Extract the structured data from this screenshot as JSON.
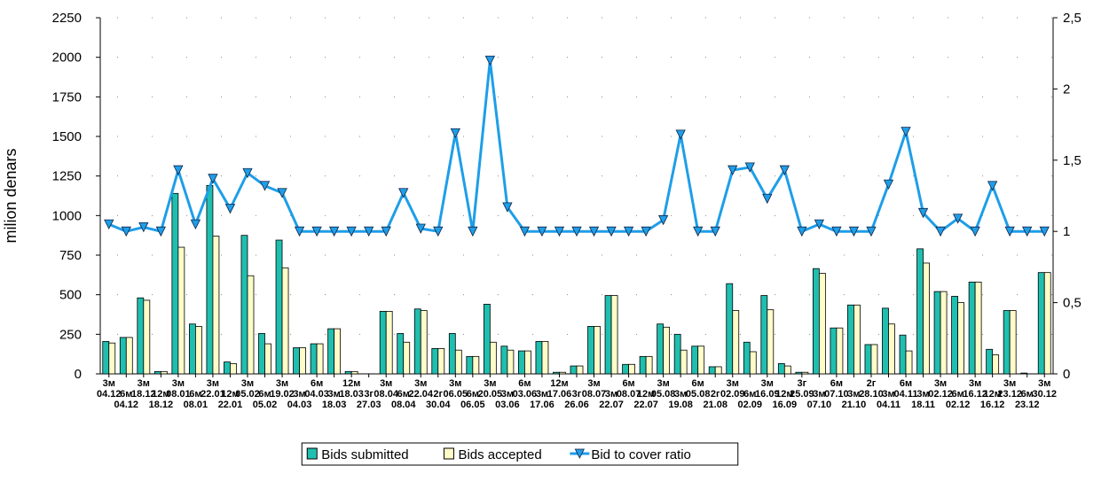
{
  "chart_data": {
    "type": "bar_line",
    "y_label": "milion denars",
    "categories": [
      "3м 04.12",
      "6м 04.12",
      "3м 18.12",
      "12м 18.12",
      "3м 08.01",
      "6м 08.01",
      "3м 22.01",
      "12м 22.01",
      "3м 05.02",
      "6м 05.02",
      "3м 19.02",
      "3м 04.03",
      "6м 04.03",
      "3м 18.03",
      "12м 18.03",
      "3г 27.03",
      "3м 08.04",
      "6м 08.04",
      "3м 22.04",
      "2г 30.04",
      "3м 06.05",
      "6м 06.05",
      "3м 20.05",
      "3м 03.06",
      "6м 03.06",
      "3м 17.06",
      "12м 17.06",
      "3г 26.06",
      "3м 08.07",
      "3м 22.07",
      "6м 08.07",
      "12м 22.07",
      "3м 05.08",
      "3м 19.08",
      "6м 05.08",
      "2г 21.08",
      "3м 02.09",
      "6м 02.09",
      "3м 16.09",
      "12м 16.09",
      "3г 25.09",
      "3м 07.10",
      "6м 07.10",
      "3м 21.10",
      "2г 28.10",
      "3м 04.11",
      "6м 04.11",
      "3м 18.11",
      "3м 02.12",
      "6м 02.12",
      "3м 16.12",
      "12м 16.12",
      "3м 23.12",
      "6м 23.12",
      "3м 30.12"
    ],
    "series": [
      {
        "name": "Bids submitted",
        "color": "#1fbfb0",
        "kind": "bar",
        "values": [
          205,
          230,
          480,
          15,
          1140,
          315,
          1190,
          75,
          875,
          255,
          845,
          165,
          190,
          285,
          15,
          0,
          395,
          255,
          410,
          160,
          255,
          110,
          440,
          175,
          145,
          205,
          10,
          50,
          300,
          495,
          60,
          110,
          315,
          250,
          175,
          45,
          570,
          200,
          495,
          65,
          10,
          665,
          290,
          435,
          185,
          415,
          245,
          790,
          520,
          490,
          580,
          155,
          400,
          5,
          640
        ]
      },
      {
        "name": "Bids accepted",
        "color": "#fffcc8",
        "kind": "bar",
        "values": [
          195,
          230,
          465,
          15,
          800,
          300,
          870,
          65,
          620,
          190,
          670,
          165,
          190,
          285,
          15,
          0,
          395,
          200,
          400,
          160,
          150,
          110,
          200,
          150,
          145,
          205,
          10,
          50,
          300,
          495,
          60,
          110,
          295,
          150,
          175,
          45,
          400,
          140,
          405,
          50,
          10,
          635,
          290,
          435,
          185,
          315,
          145,
          700,
          520,
          450,
          580,
          120,
          400,
          0,
          640
        ]
      },
      {
        "name": "Bid to cover ratio",
        "color": "#1e9ee8",
        "kind": "line",
        "axis": "y2",
        "values": [
          1.05,
          1.0,
          1.03,
          1.0,
          1.43,
          1.05,
          1.37,
          1.16,
          1.41,
          1.32,
          1.27,
          1.0,
          1.0,
          1.0,
          1.0,
          1.0,
          1.0,
          1.27,
          1.02,
          1.0,
          1.69,
          1.0,
          2.2,
          1.17,
          1.0,
          1.0,
          1.0,
          1.0,
          1.0,
          1.0,
          1.0,
          1.0,
          1.08,
          1.68,
          1.0,
          1.0,
          1.43,
          1.45,
          1.23,
          1.43,
          1.0,
          1.05,
          1.0,
          1.0,
          1.0,
          1.33,
          1.7,
          1.13,
          1.0,
          1.09,
          1.0,
          1.32,
          1.0,
          1.0,
          1.0
        ]
      }
    ],
    "ylim": [
      0,
      2250
    ],
    "yticks": [
      0,
      250,
      500,
      750,
      1000,
      1250,
      1500,
      1750,
      2000,
      2250
    ],
    "y2lim": [
      0,
      2.5
    ],
    "y2ticks": [
      0,
      {
        "value": 0.5,
        "label": "0,5"
      },
      1,
      {
        "value": 1.5,
        "label": "1,5"
      },
      2,
      {
        "value": 2.5,
        "label": "2,5"
      }
    ],
    "grid": true,
    "legend": "bottom"
  }
}
